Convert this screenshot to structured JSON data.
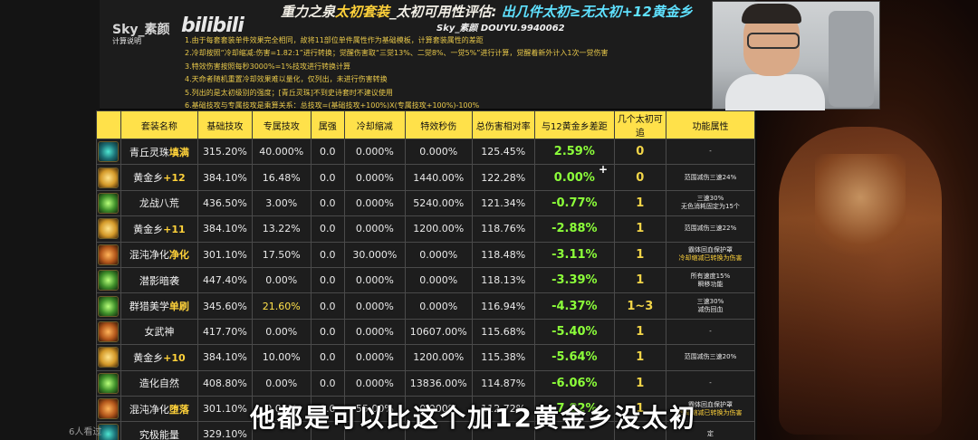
{
  "header": {
    "title_part1": "重力之泉",
    "title_part2": "太初套装",
    "title_part3": "_太初可用性评估:",
    "title_part4": "出几件太初≥无太初+12黄金乡",
    "uploader": "Sky_素颜",
    "platform_logo": "bilibili",
    "subtitle": "Sky_素颜 DOUYU.9940062",
    "notes_label": "计算说明",
    "notes": [
      "1.由于每套套装单件效果完全相同，故将11部位单件属性作为基础模板，计算套装属性的差距",
      "2.冷却按照“冷却缩减:伤害=1.82:1”进行转换；觉醒伤害取“三觉13%、二觉8%、一觉5%”进行计算，觉醒着新外计入1次一觉伤害",
      "3.特效伤害按照每秒3000%=1%技攻进行转换计算",
      "4.天命者随机重置冷却效果难以量化，仅列出，未进行伤害转换",
      "5.列出的是太初级别的强度；[青丘灵珠]不到史诗套时不建议使用",
      "6.基础技攻与专属技攻是乘算关系：总技攻=(基础技攻+100%)X(专属技攻+100%)-100%"
    ]
  },
  "table": {
    "headers": [
      "套装名称",
      "基础技攻",
      "专属技攻",
      "属强",
      "冷却缩减",
      "特效秒伤",
      "总伤害相对率",
      "与12黄金乡差距",
      "几个太初可追",
      "功能属性"
    ],
    "rows": [
      {
        "name": "青丘灵珠",
        "suffix": "填满",
        "base": "315.20%",
        "excl": "40.000%",
        "elem": "0.0",
        "cd": "0.000%",
        "effect": "0.000%",
        "total": "125.45%",
        "diff": "2.59%",
        "count": "0",
        "func1": "-",
        "func2": "",
        "icon": "ic-a",
        "excl_yellow": false
      },
      {
        "name": "黄金乡",
        "suffix": "+12",
        "base": "384.10%",
        "excl": "16.48%",
        "elem": "0.0",
        "cd": "0.000%",
        "effect": "1440.00%",
        "total": "122.28%",
        "diff": "0.00%",
        "count": "0",
        "func1": "范围减伤三速24%",
        "func2": "",
        "icon": "ic-b",
        "excl_yellow": false
      },
      {
        "name": "龙战八荒",
        "suffix": "",
        "base": "436.50%",
        "excl": "3.00%",
        "elem": "0.0",
        "cd": "0.000%",
        "effect": "5240.00%",
        "total": "121.34%",
        "diff": "-0.77%",
        "count": "1",
        "func1": "三速30%",
        "func2": "无色消耗固定为15个",
        "icon": "ic-c",
        "excl_yellow": false
      },
      {
        "name": "黄金乡",
        "suffix": "+11",
        "base": "384.10%",
        "excl": "13.22%",
        "elem": "0.0",
        "cd": "0.000%",
        "effect": "1200.00%",
        "total": "118.76%",
        "diff": "-2.88%",
        "count": "1",
        "func1": "范围减伤三速22%",
        "func2": "",
        "icon": "ic-b",
        "excl_yellow": false
      },
      {
        "name": "混沌净化",
        "suffix": "净化",
        "base": "301.10%",
        "excl": "17.50%",
        "elem": "0.0",
        "cd": "30.000%",
        "effect": "0.000%",
        "total": "118.48%",
        "diff": "-3.11%",
        "count": "1",
        "func1": "霸体回血保护罩",
        "func2": "冷却缩减已转换为伤害",
        "icon": "ic-d",
        "excl_yellow": false
      },
      {
        "name": "潜影暗袭",
        "suffix": "",
        "base": "447.40%",
        "excl": "0.00%",
        "elem": "0.0",
        "cd": "0.000%",
        "effect": "0.000%",
        "total": "118.13%",
        "diff": "-3.39%",
        "count": "1",
        "func1": "所有速度15%",
        "func2": "瞬移功能",
        "icon": "ic-c",
        "excl_yellow": false
      },
      {
        "name": "群猎美学",
        "suffix": "单刷",
        "base": "345.60%",
        "excl": "21.60%",
        "elem": "0.0",
        "cd": "0.000%",
        "effect": "0.000%",
        "total": "116.94%",
        "diff": "-4.37%",
        "count": "1~3",
        "func1": "三速30%",
        "func2": "减伤回血",
        "icon": "ic-c",
        "excl_yellow": true
      },
      {
        "name": "女武神",
        "suffix": "",
        "base": "417.70%",
        "excl": "0.00%",
        "elem": "0.0",
        "cd": "0.000%",
        "effect": "10607.00%",
        "total": "115.68%",
        "diff": "-5.40%",
        "count": "1",
        "func1": "-",
        "func2": "",
        "icon": "ic-d",
        "excl_yellow": false
      },
      {
        "name": "黄金乡",
        "suffix": "+10",
        "base": "384.10%",
        "excl": "10.00%",
        "elem": "0.0",
        "cd": "0.000%",
        "effect": "1200.00%",
        "total": "115.38%",
        "diff": "-5.64%",
        "count": "1",
        "func1": "范围减伤三速20%",
        "func2": "",
        "icon": "ic-b",
        "excl_yellow": false
      },
      {
        "name": "造化自然",
        "suffix": "",
        "base": "408.80%",
        "excl": "0.00%",
        "elem": "0.0",
        "cd": "0.000%",
        "effect": "13836.00%",
        "total": "114.87%",
        "diff": "-6.06%",
        "count": "1",
        "func1": "-",
        "func2": "",
        "icon": "ic-c",
        "excl_yellow": false
      },
      {
        "name": "混沌净化",
        "suffix": "堕落",
        "base": "301.10%",
        "excl": "0.00%",
        "elem": "0.0",
        "cd": "55.00%",
        "effect": "0.000%",
        "total": "112.72%",
        "diff": "-7.82%",
        "count": "1",
        "func1": "霸体回血保护罩",
        "func2": "冷却缩减已转换为伤害",
        "icon": "ic-d",
        "excl_yellow": false
      },
      {
        "name": "究极能量",
        "suffix": "",
        "base": "329.10%",
        "excl": "",
        "elem": "",
        "cd": "",
        "effect": "",
        "total": "",
        "diff": "",
        "count": "",
        "func1": "定",
        "func2": "",
        "icon": "ic-a",
        "excl_yellow": false
      }
    ]
  },
  "overlay": {
    "plus_sign": "+",
    "caption": "他都是可以比这个加12黄金乡没太初",
    "viewers": "6人看过"
  },
  "colors": {
    "header_yellow": "#ffe14a",
    "diff_green": "#8cff3a",
    "accent_cyan": "#5fe1ff"
  }
}
